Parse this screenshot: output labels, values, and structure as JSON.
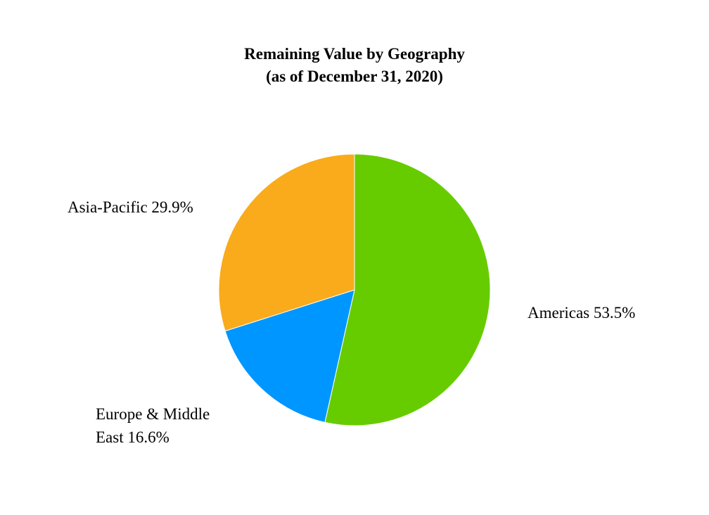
{
  "chart_data": {
    "type": "pie",
    "title": "Remaining Value by Geography",
    "subtitle": "(as of December 31, 2020)",
    "slices": [
      {
        "label": "Americas",
        "label_lines": [
          "Americas 53.5%"
        ],
        "value": 53.5,
        "color": "#66cc00"
      },
      {
        "label": "Europe & Middle East",
        "label_lines": [
          "Europe & Middle",
          "East 16.6%"
        ],
        "value": 16.6,
        "color": "#0096ff"
      },
      {
        "label": "Asia-Pacific",
        "label_lines": [
          "Asia-Pacific 29.9%"
        ],
        "value": 29.9,
        "color": "#f9ab1b"
      }
    ],
    "start": "12 o'clock",
    "direction": "clockwise",
    "legend": "none",
    "labels": "outside"
  }
}
